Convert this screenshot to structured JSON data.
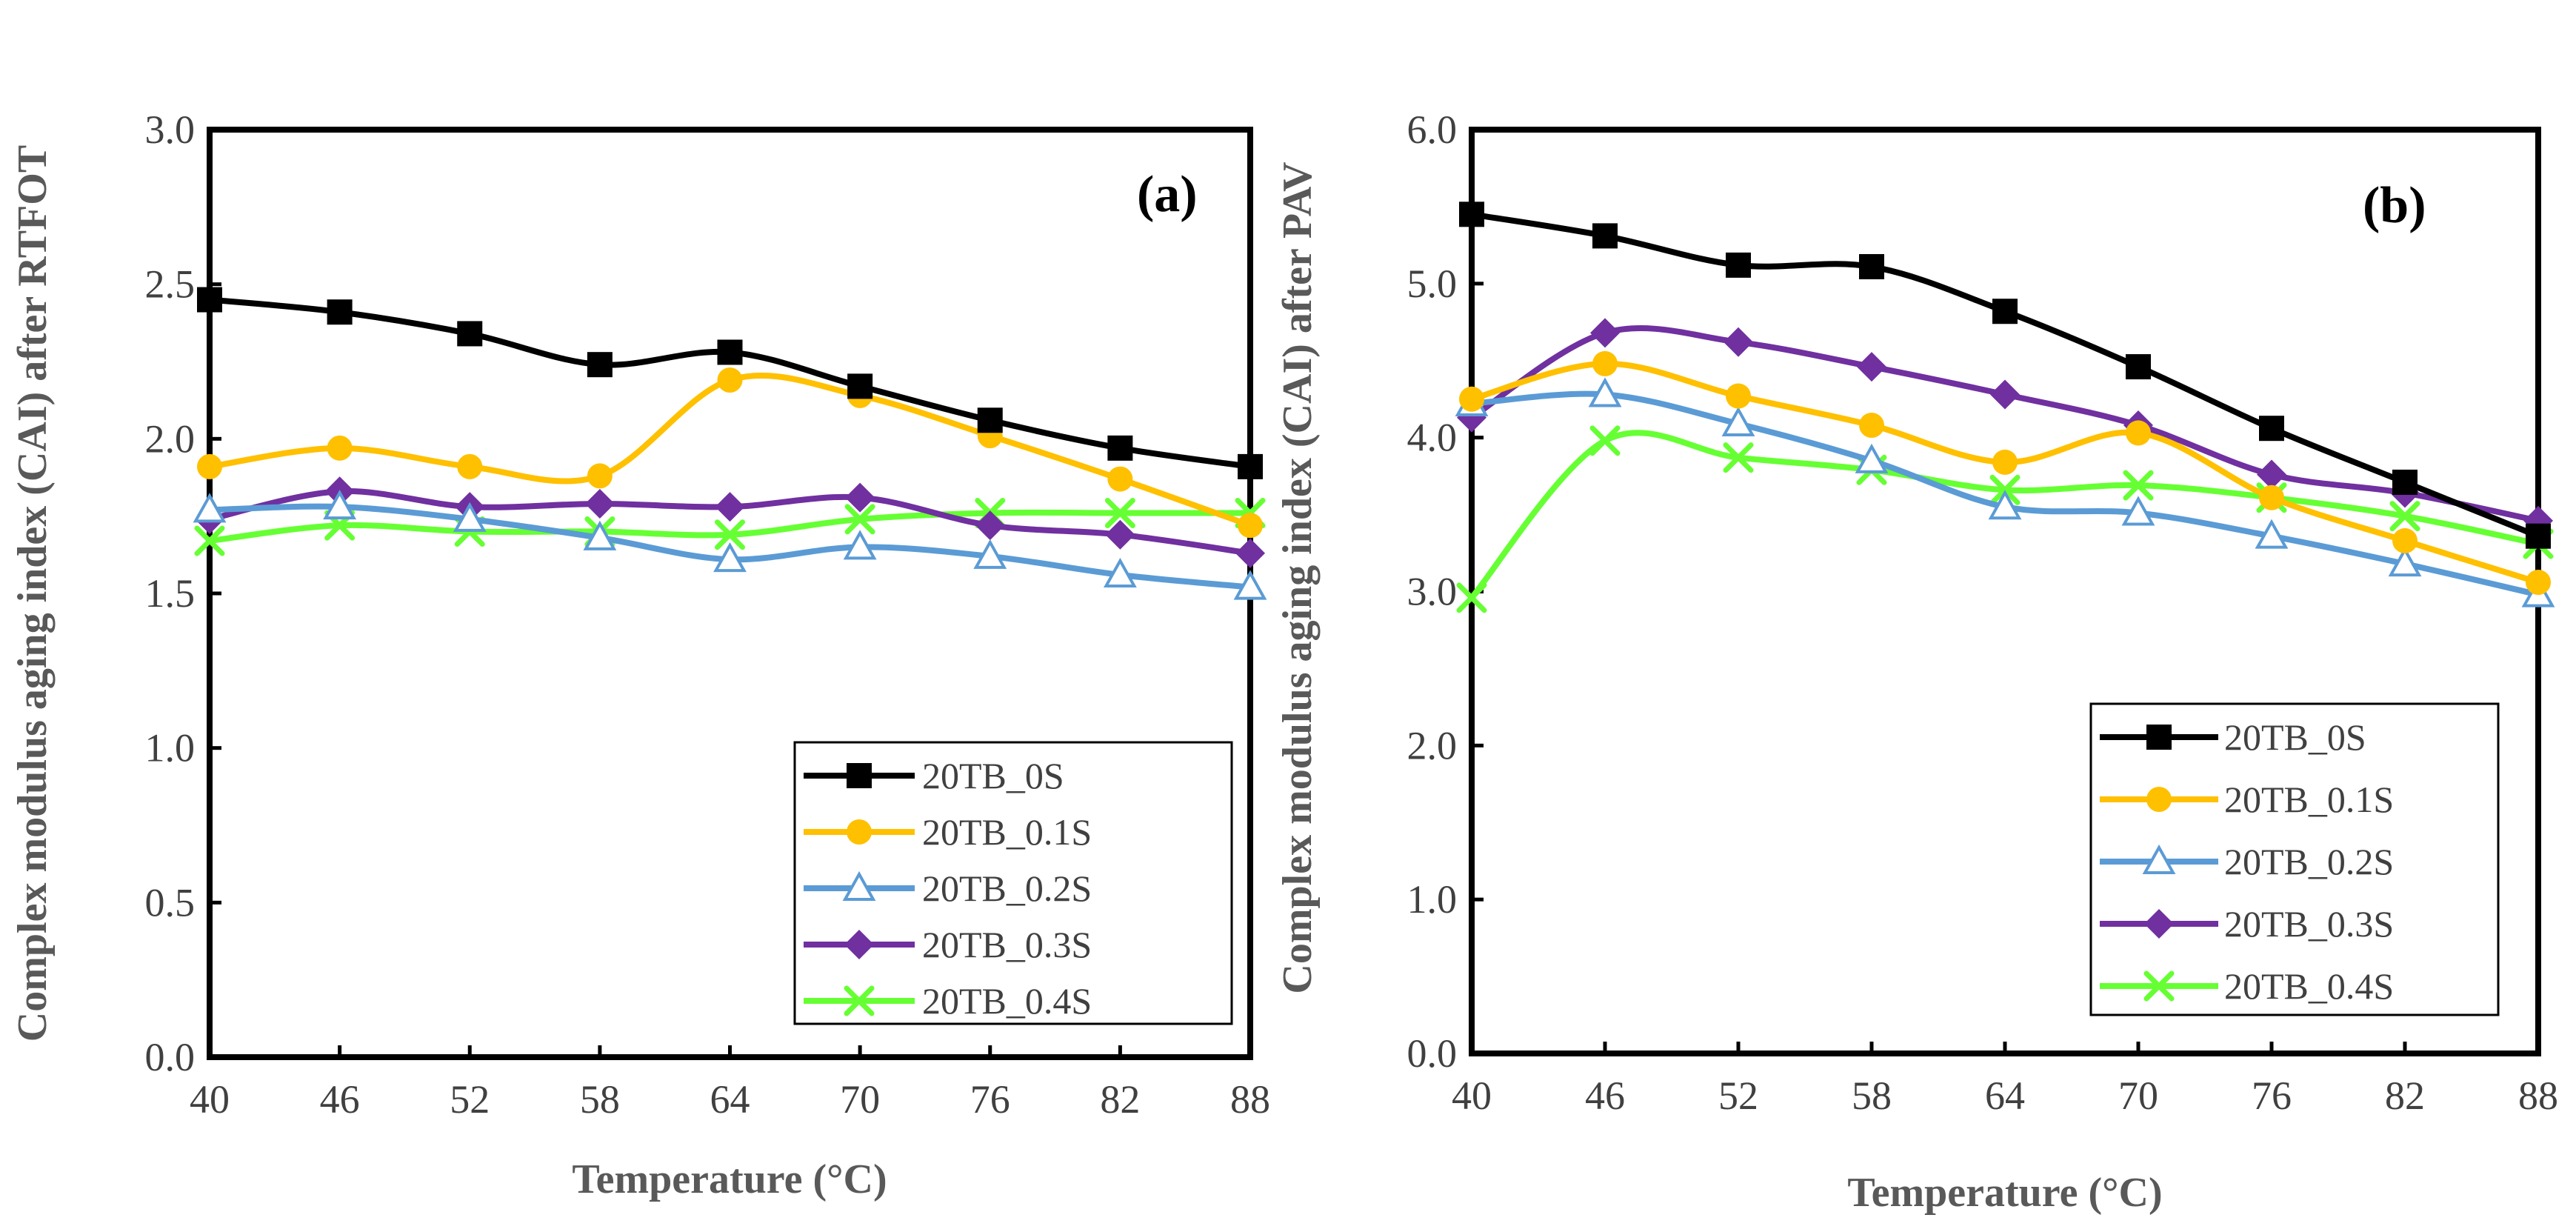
{
  "colors": {
    "20TB_0S": "#000000",
    "20TB_0.1S": "#FFC000",
    "20TB_0.2S": "#5B9BD5",
    "20TB_0.3S": "#7030A0",
    "20TB_0.4S": "#66FF33"
  },
  "chart_data": [
    {
      "type": "line",
      "panel_label": "(a)",
      "xlabel": "Temperature (°C)",
      "ylabel": "Complex modulus aging index (CAI) after RTFOT",
      "x": [
        40,
        46,
        52,
        58,
        64,
        70,
        76,
        82,
        88
      ],
      "x_tick_labels": [
        "40",
        "46",
        "52",
        "58",
        "64",
        "70",
        "76",
        "82",
        "88"
      ],
      "ylim": [
        0,
        3
      ],
      "y_ticks": [
        0,
        0.5,
        1,
        1.5,
        2,
        2.5,
        3
      ],
      "y_tick_labels": [
        "0.0",
        "0.5",
        "1.0",
        "1.5",
        "2.0",
        "2.5",
        "3.0"
      ],
      "legend_position": "bottom-right",
      "series": [
        {
          "name": "20TB_0S",
          "marker": "square",
          "values": [
            2.45,
            2.41,
            2.34,
            2.24,
            2.28,
            2.17,
            2.06,
            1.97,
            1.91
          ]
        },
        {
          "name": "20TB_0.1S",
          "marker": "circle",
          "values": [
            1.91,
            1.97,
            1.91,
            1.88,
            2.19,
            2.14,
            2.01,
            1.87,
            1.72
          ]
        },
        {
          "name": "20TB_0.2S",
          "marker": "triangle",
          "values": [
            1.77,
            1.78,
            1.74,
            1.68,
            1.61,
            1.65,
            1.62,
            1.56,
            1.52
          ]
        },
        {
          "name": "20TB_0.3S",
          "marker": "diamond",
          "values": [
            1.74,
            1.83,
            1.78,
            1.79,
            1.78,
            1.81,
            1.72,
            1.69,
            1.63
          ]
        },
        {
          "name": "20TB_0.4S",
          "marker": "x",
          "values": [
            1.67,
            1.72,
            1.7,
            1.7,
            1.69,
            1.74,
            1.76,
            1.76,
            1.76
          ]
        }
      ]
    },
    {
      "type": "line",
      "panel_label": "(b)",
      "xlabel": "Temperature (°C)",
      "ylabel": "Complex modulus aging index (CAI) after PAV",
      "x": [
        40,
        46,
        52,
        58,
        64,
        70,
        76,
        82,
        88
      ],
      "x_tick_labels": [
        "40",
        "46",
        "52",
        "58",
        "64",
        "70",
        "76",
        "82",
        "88"
      ],
      "ylim": [
        0,
        6
      ],
      "y_ticks": [
        0,
        1,
        2,
        3,
        4,
        5,
        6
      ],
      "y_tick_labels": [
        "0.0",
        "1.0",
        "2.0",
        "3.0",
        "4.0",
        "5.0",
        "6.0"
      ],
      "legend_position": "bottom-right",
      "series": [
        {
          "name": "20TB_0S",
          "marker": "square",
          "values": [
            5.45,
            5.31,
            5.12,
            5.11,
            4.82,
            4.46,
            4.06,
            3.71,
            3.36
          ]
        },
        {
          "name": "20TB_0.1S",
          "marker": "circle",
          "values": [
            4.25,
            4.48,
            4.27,
            4.08,
            3.84,
            4.03,
            3.61,
            3.33,
            3.06
          ]
        },
        {
          "name": "20TB_0.2S",
          "marker": "triangle",
          "values": [
            4.22,
            4.28,
            4.09,
            3.85,
            3.55,
            3.51,
            3.36,
            3.18,
            2.98
          ]
        },
        {
          "name": "20TB_0.3S",
          "marker": "diamond",
          "values": [
            4.13,
            4.68,
            4.62,
            4.46,
            4.28,
            4.08,
            3.76,
            3.64,
            3.46
          ]
        },
        {
          "name": "20TB_0.4S",
          "marker": "x",
          "values": [
            2.96,
            3.98,
            3.87,
            3.79,
            3.66,
            3.69,
            3.61,
            3.49,
            3.31
          ]
        }
      ]
    }
  ]
}
